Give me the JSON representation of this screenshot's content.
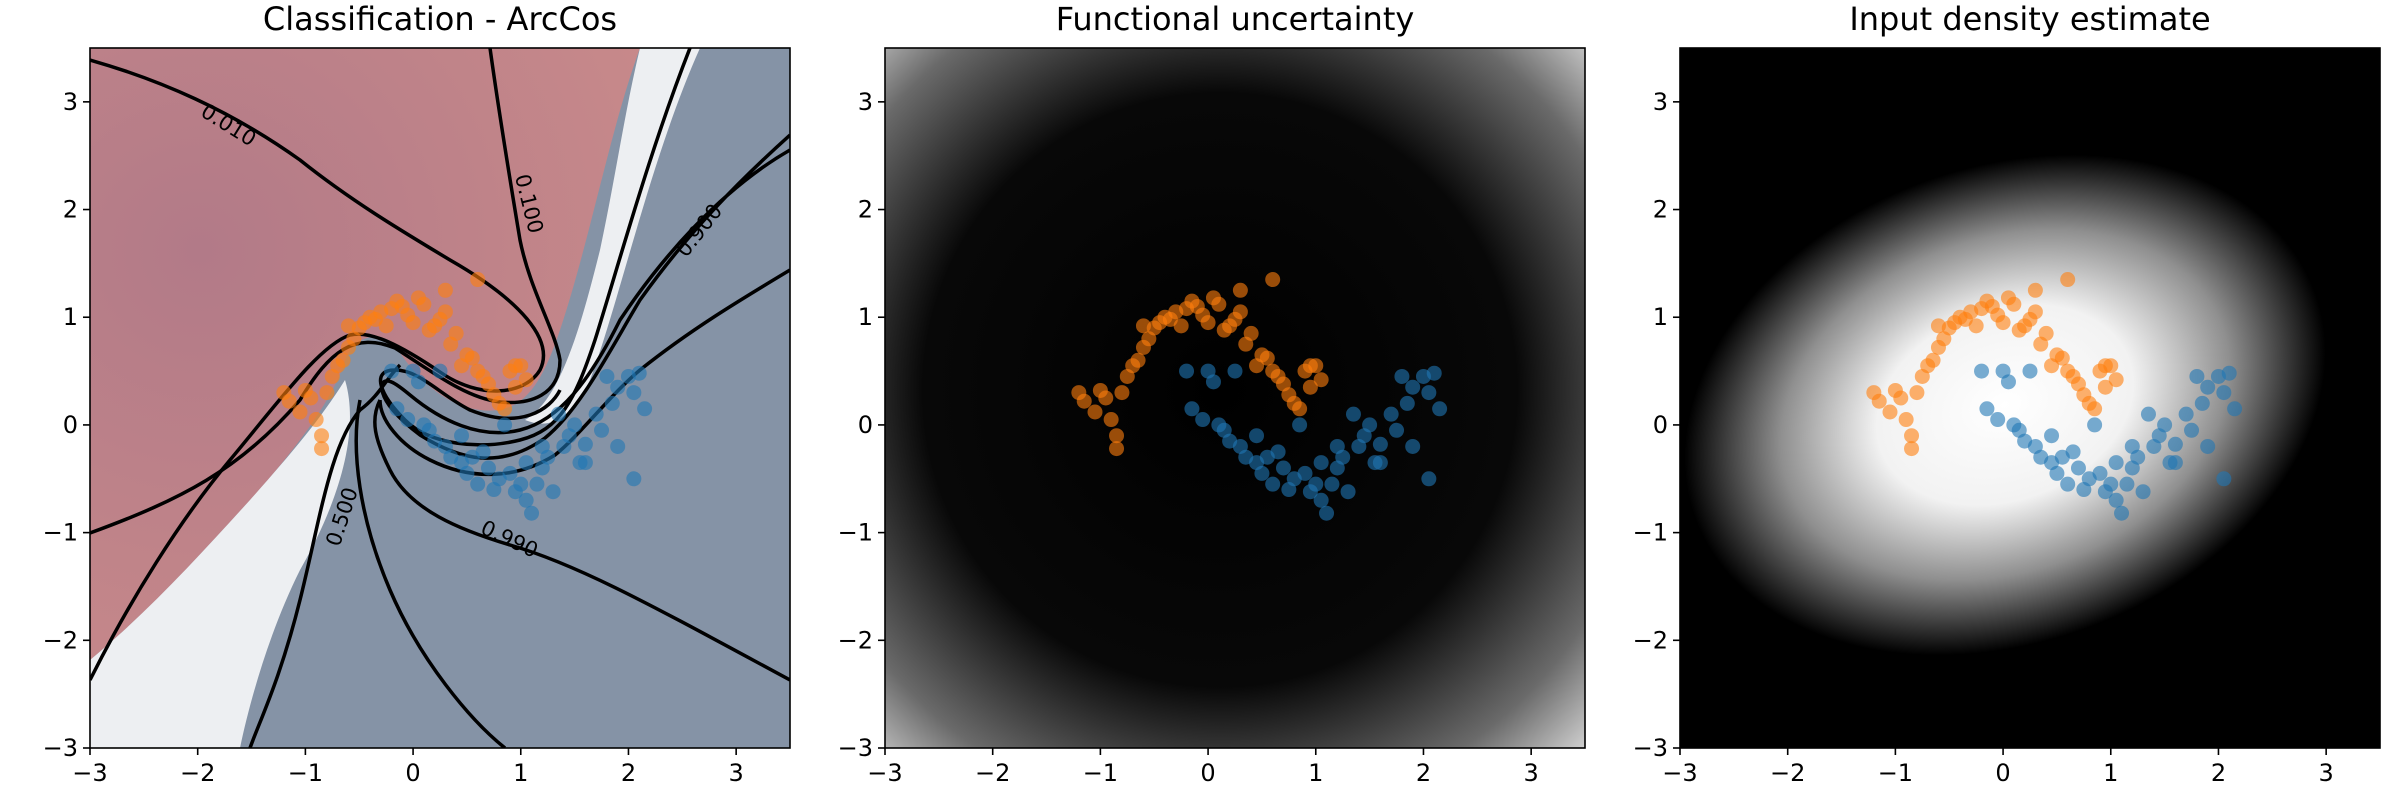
{
  "chart_data": [
    {
      "type": "heatmap",
      "title": "Classification - ArcCos",
      "xlim": [
        -3,
        3.5
      ],
      "ylim": [
        -3,
        3.5
      ],
      "xticks": [
        "−3",
        "−2",
        "−1",
        "0",
        "1",
        "2",
        "3"
      ],
      "yticks": [
        "−3",
        "−2",
        "−1",
        "0",
        "1",
        "2",
        "3"
      ],
      "background": "predicted class probability, red (class 0) to blue (class 1)",
      "contour_levels": [
        "0.010",
        "0.100",
        "0.500",
        "0.900",
        "0.990"
      ],
      "overlay": "two-moons training points"
    },
    {
      "type": "heatmap",
      "title": "Functional uncertainty",
      "xlim": [
        -3,
        3.5
      ],
      "ylim": [
        -3,
        3.5
      ],
      "xticks": [
        "−3",
        "−2",
        "−1",
        "0",
        "1",
        "2",
        "3"
      ],
      "yticks": [
        "−3",
        "−2",
        "−1",
        "0",
        "1",
        "2",
        "3"
      ],
      "background": "grayscale, dark near data, light far from data",
      "overlay": "two-moons training points"
    },
    {
      "type": "heatmap",
      "title": "Input density estimate",
      "xlim": [
        -3,
        3.5
      ],
      "ylim": [
        -3,
        3.5
      ],
      "xticks": [
        "−3",
        "−2",
        "−1",
        "0",
        "1",
        "2",
        "3"
      ],
      "yticks": [
        "−3",
        "−2",
        "−1",
        "0",
        "1",
        "2",
        "3"
      ],
      "background": "grayscale, light near data, dark far from data",
      "overlay": "two-moons training points"
    }
  ],
  "points": {
    "orange": {
      "color": "#ff7f0e",
      "x": [
        -1.2,
        -1.15,
        -1.05,
        -1.0,
        -0.95,
        -0.9,
        -0.85,
        -0.8,
        -0.75,
        -0.7,
        -0.65,
        -0.6,
        -0.55,
        -0.5,
        -0.45,
        -0.4,
        -0.35,
        -0.3,
        -0.25,
        -0.2,
        -0.15,
        -0.1,
        -0.05,
        0.0,
        0.05,
        0.1,
        0.15,
        0.2,
        0.25,
        0.3,
        0.35,
        0.4,
        0.45,
        0.5,
        0.55,
        0.6,
        0.65,
        0.7,
        0.75,
        0.8,
        0.85,
        0.9,
        0.95,
        1.0,
        1.05,
        -0.85,
        -0.6,
        0.3,
        0.6,
        0.95
      ],
      "y": [
        0.3,
        0.22,
        0.12,
        0.32,
        0.25,
        0.05,
        -0.1,
        0.3,
        0.45,
        0.55,
        0.6,
        0.72,
        0.8,
        0.9,
        0.95,
        1.0,
        0.98,
        1.05,
        0.92,
        1.08,
        1.15,
        1.1,
        1.02,
        0.95,
        1.18,
        1.12,
        0.88,
        0.92,
        0.98,
        1.05,
        0.75,
        0.85,
        0.55,
        0.65,
        0.62,
        0.5,
        0.45,
        0.38,
        0.28,
        0.2,
        0.15,
        0.5,
        0.35,
        0.55,
        0.42,
        -0.22,
        0.92,
        1.25,
        1.35,
        0.55
      ]
    },
    "blue": {
      "color": "#1f77b4",
      "x": [
        -0.2,
        -0.15,
        -0.05,
        0.0,
        0.1,
        0.15,
        0.2,
        0.3,
        0.35,
        0.45,
        0.5,
        0.55,
        0.6,
        0.7,
        0.75,
        0.8,
        0.9,
        0.95,
        1.0,
        1.05,
        1.1,
        1.15,
        1.2,
        1.25,
        1.3,
        1.4,
        1.45,
        1.5,
        1.55,
        1.6,
        1.7,
        1.75,
        1.8,
        1.85,
        1.9,
        2.0,
        2.05,
        2.1,
        2.15,
        2.05,
        0.05,
        0.25,
        0.45,
        0.65,
        0.85,
        1.05,
        1.2,
        1.35,
        1.6,
        1.9
      ],
      "y": [
        0.5,
        0.15,
        0.05,
        0.5,
        0.0,
        -0.05,
        -0.15,
        -0.2,
        -0.3,
        -0.35,
        -0.45,
        -0.3,
        -0.55,
        -0.4,
        -0.6,
        -0.5,
        -0.45,
        -0.62,
        -0.55,
        -0.7,
        -0.82,
        -0.55,
        -0.4,
        -0.3,
        -0.62,
        -0.2,
        -0.1,
        0.0,
        -0.35,
        -0.18,
        0.1,
        -0.05,
        0.45,
        0.2,
        -0.2,
        0.45,
        0.3,
        0.48,
        0.15,
        -0.5,
        0.4,
        0.5,
        -0.1,
        -0.25,
        0.0,
        -0.35,
        -0.2,
        0.1,
        -0.35,
        0.35
      ]
    }
  }
}
